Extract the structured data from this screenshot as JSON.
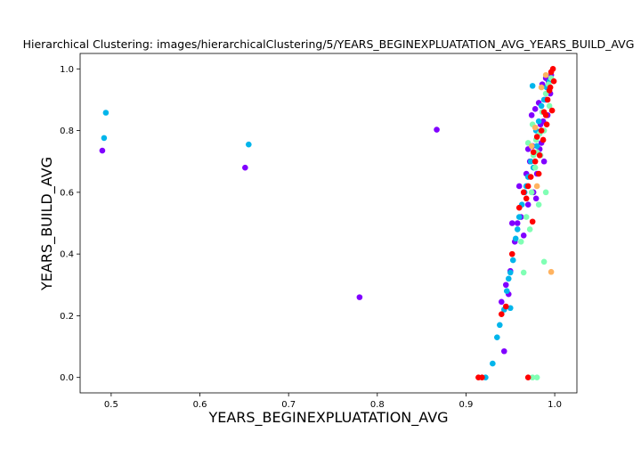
{
  "chart_data": {
    "type": "scatter",
    "title": "Hierarchical Clustering: images/hierarchicalClustering/5/YEARS_BEGINEXPLUATATION_AVG_YEARS_BUILD_AVG",
    "xlabel": "YEARS_BEGINEXPLUATATION_AVG",
    "ylabel": "YEARS_BUILD_AVG",
    "xlim": [
      0.465,
      1.025
    ],
    "ylim": [
      -0.05,
      1.05
    ],
    "xticks": [
      0.5,
      0.6,
      0.7,
      0.8,
      0.9,
      1.0
    ],
    "xtick_labels": [
      "0.5",
      "0.6",
      "0.7",
      "0.8",
      "0.9",
      "1.0"
    ],
    "yticks": [
      0.0,
      0.2,
      0.4,
      0.6,
      0.8,
      1.0
    ],
    "ytick_labels": [
      "0.0",
      "0.2",
      "0.4",
      "0.6",
      "0.8",
      "1.0"
    ],
    "grid": false,
    "legend": "none",
    "series": [
      {
        "color": "#8000ff",
        "points": [
          [
            0.49,
            0.735
          ],
          [
            0.651,
            0.68
          ],
          [
            0.78,
            0.26
          ],
          [
            0.867,
            0.803
          ],
          [
            0.94,
            0.245
          ],
          [
            0.945,
            0.3
          ],
          [
            0.95,
            0.345
          ],
          [
            0.952,
            0.5
          ],
          [
            0.955,
            0.44
          ],
          [
            0.958,
            0.5
          ],
          [
            0.96,
            0.62
          ],
          [
            0.965,
            0.46
          ],
          [
            0.968,
            0.66
          ],
          [
            0.97,
            0.56
          ],
          [
            0.972,
            0.7
          ],
          [
            0.975,
            0.75
          ],
          [
            0.976,
            0.6
          ],
          [
            0.978,
            0.87
          ],
          [
            0.98,
            0.66
          ],
          [
            0.982,
            0.89
          ],
          [
            0.984,
            0.82
          ],
          [
            0.985,
            0.76
          ],
          [
            0.986,
            0.95
          ],
          [
            0.988,
            0.7
          ],
          [
            0.99,
            0.9
          ],
          [
            0.992,
            0.85
          ],
          [
            0.993,
            0.96
          ],
          [
            0.995,
            0.92
          ],
          [
            0.996,
            0.98
          ],
          [
            0.943,
            0.085
          ],
          [
            0.948,
            0.27
          ],
          [
            0.962,
            0.52
          ],
          [
            0.97,
            0.74
          ],
          [
            0.974,
            0.85
          ],
          [
            0.979,
            0.58
          ],
          [
            0.983,
            0.74
          ],
          [
            0.987,
            0.83
          ],
          [
            0.99,
            0.97
          ]
        ]
      },
      {
        "color": "#00b5eb",
        "points": [
          [
            0.492,
            0.776
          ],
          [
            0.494,
            0.858
          ],
          [
            0.655,
            0.755
          ],
          [
            0.922,
            0.0
          ],
          [
            0.93,
            0.045
          ],
          [
            0.935,
            0.13
          ],
          [
            0.938,
            0.17
          ],
          [
            0.943,
            0.22
          ],
          [
            0.946,
            0.28
          ],
          [
            0.948,
            0.32
          ],
          [
            0.95,
            0.225
          ],
          [
            0.953,
            0.38
          ],
          [
            0.956,
            0.45
          ],
          [
            0.96,
            0.52
          ],
          [
            0.963,
            0.56
          ],
          [
            0.966,
            0.6
          ],
          [
            0.97,
            0.65
          ],
          [
            0.973,
            0.7
          ],
          [
            0.976,
            0.68
          ],
          [
            0.979,
            0.8
          ],
          [
            0.982,
            0.83
          ],
          [
            0.985,
            0.88
          ],
          [
            0.988,
            0.9
          ],
          [
            0.991,
            0.94
          ],
          [
            0.994,
            0.96
          ],
          [
            0.975,
            0.945
          ],
          [
            0.95,
            0.34
          ],
          [
            0.958,
            0.48
          ],
          [
            0.968,
            0.62
          ],
          [
            0.98,
            0.75
          ]
        ]
      },
      {
        "color": "#80ffb4",
        "points": [
          [
            0.975,
            0.0
          ],
          [
            0.98,
            0.0
          ],
          [
            0.965,
            0.34
          ],
          [
            0.988,
            0.375
          ],
          [
            0.99,
            0.6
          ],
          [
            0.982,
            0.56
          ],
          [
            0.972,
            0.48
          ],
          [
            0.97,
            0.76
          ],
          [
            0.976,
            0.72
          ],
          [
            0.978,
            0.68
          ],
          [
            0.98,
            0.73
          ],
          [
            0.984,
            0.72
          ],
          [
            0.986,
            0.86
          ],
          [
            0.99,
            0.92
          ],
          [
            0.993,
            0.95
          ],
          [
            0.996,
            0.97
          ],
          [
            0.975,
            0.82
          ],
          [
            0.968,
            0.52
          ],
          [
            0.974,
            0.6
          ],
          [
            0.983,
            0.79
          ],
          [
            0.988,
            0.8
          ],
          [
            0.994,
            0.88
          ],
          [
            0.962,
            0.44
          ],
          [
            0.979,
            0.77
          ]
        ]
      },
      {
        "color": "#ffb360",
        "points": [
          [
            0.996,
            0.342
          ],
          [
            0.974,
            0.75
          ],
          [
            0.98,
            0.62
          ],
          [
            0.985,
            0.94
          ],
          [
            0.99,
            0.98
          ],
          [
            0.978,
            0.81
          ]
        ]
      },
      {
        "color": "#ff0000",
        "points": [
          [
            0.914,
            0.0
          ],
          [
            0.918,
            0.0
          ],
          [
            0.97,
            0.0
          ],
          [
            0.94,
            0.205
          ],
          [
            0.945,
            0.23
          ],
          [
            0.952,
            0.4
          ],
          [
            0.96,
            0.55
          ],
          [
            0.965,
            0.6
          ],
          [
            0.97,
            0.62
          ],
          [
            0.975,
            0.505
          ],
          [
            0.978,
            0.7
          ],
          [
            0.98,
            0.78
          ],
          [
            0.982,
            0.66
          ],
          [
            0.985,
            0.8
          ],
          [
            0.988,
            0.86
          ],
          [
            0.99,
            0.85
          ],
          [
            0.992,
            0.9
          ],
          [
            0.994,
            0.93
          ],
          [
            0.996,
            0.99
          ],
          [
            0.998,
            1.0
          ],
          [
            0.997,
            0.865
          ],
          [
            0.973,
            0.65
          ],
          [
            0.976,
            0.73
          ],
          [
            0.983,
            0.72
          ],
          [
            0.987,
            0.77
          ],
          [
            0.991,
            0.82
          ],
          [
            0.995,
            0.94
          ],
          [
            0.968,
            0.58
          ],
          [
            0.999,
            0.96
          ]
        ]
      }
    ]
  }
}
